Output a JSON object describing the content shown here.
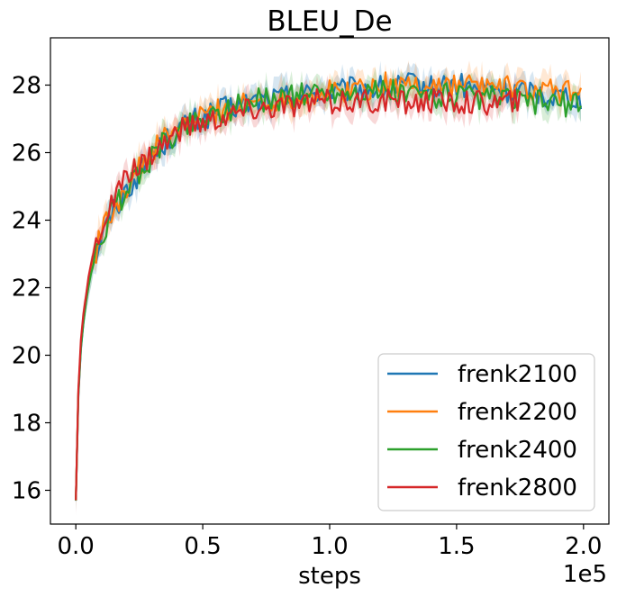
{
  "chart_data": {
    "type": "line",
    "title": "BLEU_De",
    "xlabel": "steps",
    "ylabel": "",
    "x_offset_label": "1e5",
    "xlim": [
      -10000,
      210000
    ],
    "ylim": [
      15,
      29.4
    ],
    "xticks": [
      0,
      50000,
      100000,
      150000,
      200000
    ],
    "xtick_labels": [
      "0.0",
      "0.5",
      "1.0",
      "1.5",
      "2.0"
    ],
    "yticks": [
      16,
      18,
      20,
      22,
      24,
      26,
      28
    ],
    "ytick_labels": [
      "16",
      "18",
      "20",
      "22",
      "24",
      "26",
      "28"
    ],
    "grid": false,
    "legend_position": "lower-right",
    "series": [
      {
        "name": "frenk2100",
        "color": "#1f77b4",
        "x": [
          0,
          1000,
          2000,
          3000,
          4000,
          5000,
          6000,
          8000,
          10000,
          12500,
          15000,
          17500,
          20000,
          25000,
          30000,
          35000,
          40000,
          45000,
          50000,
          55000,
          60000,
          65000,
          70000,
          75000,
          80000,
          85000,
          90000,
          95000,
          100000,
          105000,
          110000,
          115000,
          120000,
          125000,
          130000,
          135000,
          140000,
          145000,
          150000,
          155000,
          160000,
          165000,
          170000,
          175000,
          180000,
          185000,
          190000,
          195000,
          199000
        ],
        "values": [
          15.7,
          18.8,
          20.2,
          21.0,
          21.6,
          22.1,
          22.5,
          23.0,
          23.5,
          23.9,
          24.3,
          24.6,
          24.9,
          25.4,
          25.9,
          26.3,
          26.6,
          26.9,
          27.0,
          27.2,
          27.3,
          27.4,
          27.5,
          27.6,
          27.6,
          27.7,
          27.7,
          27.8,
          27.8,
          27.8,
          27.9,
          27.9,
          27.9,
          27.9,
          28.0,
          28.0,
          27.9,
          28.0,
          28.0,
          27.9,
          27.9,
          27.9,
          27.8,
          27.8,
          27.8,
          27.7,
          27.7,
          27.7,
          27.6
        ]
      },
      {
        "name": "frenk2200",
        "color": "#ff7f0e",
        "x": [
          0,
          1000,
          2000,
          3000,
          4000,
          5000,
          6000,
          8000,
          10000,
          12500,
          15000,
          17500,
          20000,
          25000,
          30000,
          35000,
          40000,
          45000,
          50000,
          55000,
          60000,
          65000,
          70000,
          75000,
          80000,
          85000,
          90000,
          95000,
          100000,
          105000,
          110000,
          115000,
          120000,
          125000,
          130000,
          135000,
          140000,
          145000,
          150000,
          155000,
          160000,
          165000,
          170000,
          175000,
          180000,
          185000,
          190000,
          195000,
          199000
        ],
        "values": [
          15.7,
          18.9,
          20.3,
          21.1,
          21.7,
          22.2,
          22.6,
          23.1,
          23.6,
          24.0,
          24.4,
          24.7,
          25.0,
          25.5,
          26.0,
          26.4,
          26.7,
          26.9,
          27.1,
          27.2,
          27.3,
          27.4,
          27.5,
          27.5,
          27.6,
          27.6,
          27.7,
          27.7,
          27.8,
          27.8,
          27.9,
          27.9,
          28.0,
          28.0,
          28.0,
          28.0,
          28.0,
          28.0,
          28.0,
          28.0,
          28.0,
          27.9,
          27.9,
          27.9,
          27.8,
          27.8,
          27.8,
          27.8,
          27.7
        ]
      },
      {
        "name": "frenk2400",
        "color": "#2ca02c",
        "x": [
          0,
          1000,
          2000,
          3000,
          4000,
          5000,
          6000,
          8000,
          10000,
          12500,
          15000,
          17500,
          20000,
          25000,
          30000,
          35000,
          40000,
          45000,
          50000,
          55000,
          60000,
          65000,
          70000,
          75000,
          80000,
          85000,
          90000,
          95000,
          100000,
          105000,
          110000,
          115000,
          120000,
          125000,
          130000,
          135000,
          140000,
          145000,
          150000,
          155000,
          160000,
          165000,
          170000,
          175000,
          180000,
          185000,
          190000,
          195000,
          199000
        ],
        "values": [
          15.7,
          18.8,
          20.2,
          21.0,
          21.6,
          22.0,
          22.4,
          23.0,
          23.5,
          23.9,
          24.3,
          24.6,
          24.9,
          25.4,
          25.9,
          26.3,
          26.6,
          26.9,
          27.0,
          27.2,
          27.3,
          27.4,
          27.5,
          27.6,
          27.6,
          27.7,
          27.7,
          27.8,
          27.8,
          27.8,
          27.8,
          27.8,
          27.8,
          27.8,
          27.7,
          27.7,
          27.7,
          27.7,
          27.7,
          27.6,
          27.6,
          27.6,
          27.6,
          27.5,
          27.5,
          27.5,
          27.5,
          27.4,
          27.4
        ]
      },
      {
        "name": "frenk2800",
        "color": "#d62728",
        "x": [
          0,
          1000,
          2000,
          3000,
          4000,
          5000,
          6000,
          8000,
          10000,
          12500,
          15000,
          17500,
          20000,
          25000,
          30000,
          35000,
          40000,
          45000,
          50000,
          55000,
          60000,
          65000,
          70000,
          75000,
          80000,
          85000,
          90000,
          95000,
          100000,
          105000,
          110000,
          115000,
          120000,
          125000,
          130000,
          135000,
          140000,
          145000,
          150000,
          155000,
          160000,
          165000,
          170000,
          175000
        ],
        "values": [
          15.7,
          19.0,
          20.4,
          21.2,
          21.8,
          22.3,
          22.7,
          23.3,
          23.8,
          24.2,
          24.6,
          24.9,
          25.2,
          25.6,
          26.0,
          26.3,
          26.6,
          26.8,
          26.9,
          27.0,
          27.1,
          27.2,
          27.3,
          27.3,
          27.4,
          27.4,
          27.4,
          27.5,
          27.5,
          27.5,
          27.5,
          27.5,
          27.5,
          27.5,
          27.5,
          27.5,
          27.5,
          27.5,
          27.5,
          27.5,
          27.5,
          27.5,
          27.5,
          27.5
        ]
      }
    ]
  }
}
